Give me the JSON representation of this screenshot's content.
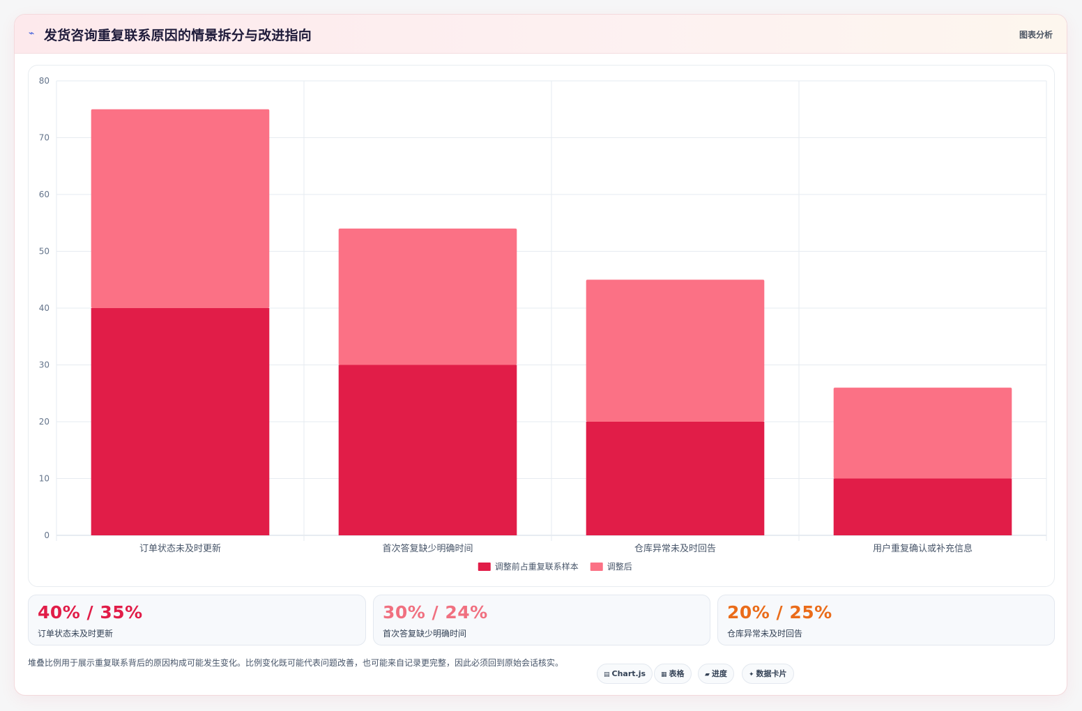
{
  "header": {
    "title_icon": "trend-icon",
    "title": "发货咨询重复联系原因的情景拆分与改进指向",
    "tag": "图表分析"
  },
  "colors": {
    "before": "#e11d48",
    "after": "#fb7185",
    "stat_red": "#e11d48",
    "stat_pink": "#f07080",
    "stat_orange": "#ea6c1a"
  },
  "chart_data": {
    "type": "bar",
    "stacked": true,
    "categories": [
      "订单状态未及时更新",
      "首次答复缺少明确时间",
      "仓库异常未及时回告",
      "用户重复确认或补充信息"
    ],
    "series": [
      {
        "name": "调整前占重复联系样本",
        "values": [
          40,
          30,
          20,
          10
        ]
      },
      {
        "name": "调整后",
        "values": [
          35,
          24,
          25,
          16
        ]
      }
    ],
    "ylim": [
      0,
      80
    ],
    "yticks": [
      0,
      10,
      20,
      30,
      40,
      50,
      60,
      70,
      80
    ],
    "grid": true,
    "legend_position": "bottom"
  },
  "stats": [
    {
      "value": "40% / 35%",
      "label": "订单状态未及时更新"
    },
    {
      "value": "30% / 24%",
      "label": "首次答复缺少明确时间"
    },
    {
      "value": "20% / 25%",
      "label": "仓库异常未及时回告"
    }
  ],
  "footnote": "堆叠比例用于展示重复联系背后的原因构成可能发生变化。比例变化既可能代表问题改善，也可能来自记录更完整，因此必须回到原始会话核实。",
  "chips": [
    {
      "icon": "chart-icon",
      "glyph": "▤",
      "label": "Chart.js"
    },
    {
      "icon": "table-icon",
      "glyph": "▦",
      "label": "表格"
    },
    {
      "icon": "progress-icon",
      "glyph": "▰",
      "label": "进度"
    },
    {
      "icon": "sparkle-icon",
      "glyph": "✦",
      "label": "数据卡片"
    }
  ]
}
